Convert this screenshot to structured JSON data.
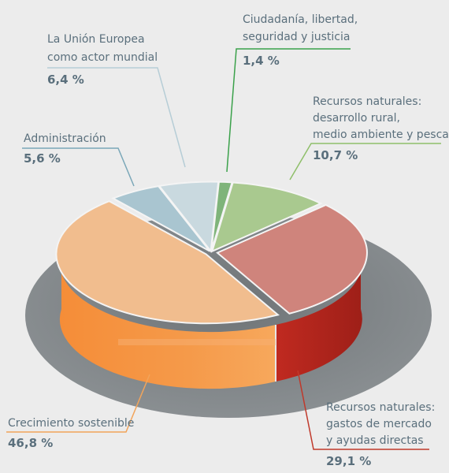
{
  "chart_data": {
    "type": "pie",
    "slices": [
      {
        "label_lines": [
          "Ciudadanía, libertad,",
          "seguridad y justicia"
        ],
        "value_label": "1,4 %",
        "value": 1.4,
        "color": "#7fb47a"
      },
      {
        "label_lines": [
          "Recursos naturales:",
          "desarrollo rural,",
          "medio ambiente y pesca"
        ],
        "value_label": "10,7 %",
        "value": 10.7,
        "color": "#a9c98f"
      },
      {
        "label_lines": [
          "Recursos naturales:",
          "gastos de mercado",
          "y ayudas directas"
        ],
        "value_label": "29,1 %",
        "value": 29.1,
        "color": "#cf847c"
      },
      {
        "label_lines": [
          "Crecimiento sostenible"
        ],
        "value_label": "46,8 %",
        "value": 46.8,
        "color": "#f1bd8e"
      },
      {
        "label_lines": [
          "Administración"
        ],
        "value_label": "5,6 %",
        "value": 5.6,
        "color": "#a9c5d0"
      },
      {
        "label_lines": [
          "La Unión Europea",
          "como actor mundial"
        ],
        "value_label": "6,4 %",
        "value": 6.4,
        "color": "#c9d9df"
      }
    ],
    "colors": {
      "label_text": "#5a6f7c",
      "shadow": "#7e8386",
      "side_orange": "#f28a3a",
      "side_red": "#b32a22",
      "line_green": "#3aa14a",
      "line_lightgreen": "#8fbf6a",
      "line_red": "#c0392b",
      "line_orange": "#f2a45a",
      "line_blue": "#7aa7b8",
      "line_lightblue": "#b6cdd6"
    }
  }
}
